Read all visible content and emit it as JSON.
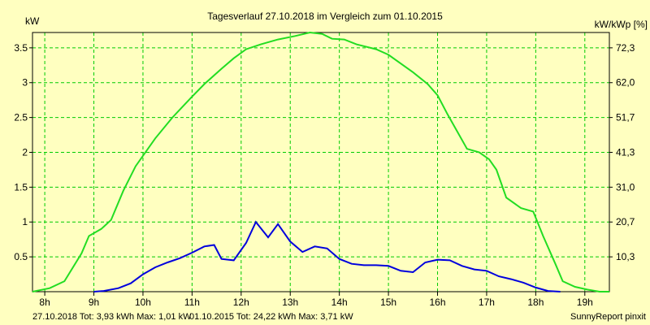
{
  "colors": {
    "background": "#ffffc0",
    "plot_frame": "#000000",
    "grid": "#00cc00",
    "series_2018": "#0000dd",
    "series_2015": "#22dd22"
  },
  "chart_data": {
    "type": "line",
    "title": "Tagesverlauf 27.10.2018 im Vergleich zum 01.10.2015",
    "ylabel_left": "kW",
    "ylabel_right": "kW/kWp [%]",
    "x_tick_labels": [
      "8h",
      "9h",
      "10h",
      "11h",
      "12h",
      "13h",
      "14h",
      "15h",
      "16h",
      "17h",
      "18h",
      "19h"
    ],
    "x_ticks": [
      8,
      9,
      10,
      11,
      12,
      13,
      14,
      15,
      16,
      17,
      18,
      19
    ],
    "xlim": [
      7.75,
      19.5
    ],
    "ylim": [
      0,
      3.72
    ],
    "y_tick_values": [
      0.5,
      1,
      1.5,
      2,
      2.5,
      3,
      3.5
    ],
    "y_tick_labels": [
      "0.5",
      "1",
      "1.5",
      "2",
      "2.5",
      "3",
      "3.5"
    ],
    "y_right_tick_values": [
      0.5,
      1.0,
      1.5,
      2.0,
      2.5,
      3.0,
      3.5
    ],
    "y_right_tick_labels": [
      "10,3",
      "20,7",
      "31,0",
      "41,3",
      "51,7",
      "62,0",
      "72,3"
    ],
    "grid": true,
    "series": [
      {
        "key": "s2015",
        "points": [
          [
            7.75,
            0.0
          ],
          [
            8.1,
            0.05
          ],
          [
            8.4,
            0.15
          ],
          [
            8.75,
            0.55
          ],
          [
            8.9,
            0.8
          ],
          [
            9.15,
            0.9
          ],
          [
            9.35,
            1.03
          ],
          [
            9.6,
            1.45
          ],
          [
            9.85,
            1.8
          ],
          [
            10.25,
            2.2
          ],
          [
            10.6,
            2.5
          ],
          [
            11.0,
            2.8
          ],
          [
            11.25,
            2.98
          ],
          [
            11.6,
            3.2
          ],
          [
            11.85,
            3.35
          ],
          [
            12.1,
            3.48
          ],
          [
            12.4,
            3.55
          ],
          [
            12.75,
            3.62
          ],
          [
            13.1,
            3.67
          ],
          [
            13.4,
            3.72
          ],
          [
            13.65,
            3.7
          ],
          [
            13.85,
            3.63
          ],
          [
            14.1,
            3.62
          ],
          [
            14.35,
            3.55
          ],
          [
            14.75,
            3.48
          ],
          [
            15.0,
            3.4
          ],
          [
            15.5,
            3.15
          ],
          [
            15.8,
            2.98
          ],
          [
            16.0,
            2.82
          ],
          [
            16.2,
            2.55
          ],
          [
            16.4,
            2.3
          ],
          [
            16.6,
            2.05
          ],
          [
            16.85,
            2.0
          ],
          [
            17.05,
            1.9
          ],
          [
            17.2,
            1.75
          ],
          [
            17.4,
            1.35
          ],
          [
            17.7,
            1.2
          ],
          [
            17.95,
            1.15
          ],
          [
            18.15,
            0.8
          ],
          [
            18.4,
            0.4
          ],
          [
            18.55,
            0.15
          ],
          [
            18.8,
            0.07
          ],
          [
            19.05,
            0.03
          ],
          [
            19.3,
            0.0
          ],
          [
            19.5,
            0.0
          ]
        ]
      },
      {
        "key": "s2018",
        "points": [
          [
            9.0,
            0.0
          ],
          [
            9.2,
            0.01
          ],
          [
            9.5,
            0.05
          ],
          [
            9.75,
            0.12
          ],
          [
            10.0,
            0.25
          ],
          [
            10.25,
            0.35
          ],
          [
            10.5,
            0.42
          ],
          [
            10.75,
            0.48
          ],
          [
            11.0,
            0.56
          ],
          [
            11.25,
            0.65
          ],
          [
            11.45,
            0.67
          ],
          [
            11.6,
            0.47
          ],
          [
            11.85,
            0.45
          ],
          [
            12.1,
            0.7
          ],
          [
            12.3,
            1.0
          ],
          [
            12.55,
            0.78
          ],
          [
            12.75,
            0.97
          ],
          [
            13.0,
            0.72
          ],
          [
            13.25,
            0.57
          ],
          [
            13.5,
            0.65
          ],
          [
            13.75,
            0.62
          ],
          [
            14.0,
            0.47
          ],
          [
            14.25,
            0.4
          ],
          [
            14.5,
            0.38
          ],
          [
            14.75,
            0.38
          ],
          [
            15.0,
            0.37
          ],
          [
            15.25,
            0.3
          ],
          [
            15.5,
            0.28
          ],
          [
            15.75,
            0.42
          ],
          [
            16.0,
            0.46
          ],
          [
            16.25,
            0.45
          ],
          [
            16.5,
            0.37
          ],
          [
            16.75,
            0.32
          ],
          [
            17.0,
            0.3
          ],
          [
            17.25,
            0.22
          ],
          [
            17.5,
            0.18
          ],
          [
            17.75,
            0.13
          ],
          [
            18.0,
            0.06
          ],
          [
            18.25,
            0.01
          ],
          [
            18.5,
            0.0
          ]
        ]
      }
    ]
  },
  "footer": {
    "legend_2018": "27.10.2018 Tot: 3,93 kWh Max: 1,01 kW",
    "legend_2015": "01.10.2015 Tot: 24,22 kWh Max: 3,71 kW",
    "credit": "SunnyReport pinxit"
  }
}
